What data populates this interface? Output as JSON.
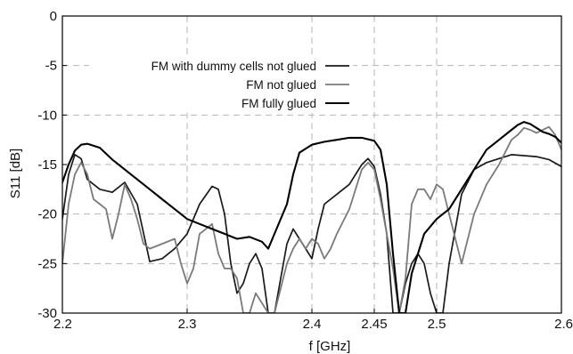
{
  "chart_data": {
    "type": "line",
    "title": "",
    "xlabel": "f [GHz]",
    "ylabel": "S11 [dB]",
    "xlim": [
      2.2,
      2.6
    ],
    "ylim": [
      -30,
      0
    ],
    "grid": true,
    "grid_style": "dashed",
    "legend_position": "top-right",
    "x_ticks": [
      {
        "value": 2.2,
        "label": "2.2"
      },
      {
        "value": 2.3,
        "label": "2.3"
      },
      {
        "value": 2.4,
        "label": "2.4"
      },
      {
        "value": 2.45,
        "label": "2.45"
      },
      {
        "value": 2.5,
        "label": "2.5"
      },
      {
        "value": 2.6,
        "label": "2.6"
      }
    ],
    "y_ticks": [
      {
        "value": 0,
        "label": "0"
      },
      {
        "value": -5,
        "label": "-5"
      },
      {
        "value": -10,
        "label": "-10"
      },
      {
        "value": -15,
        "label": "-15"
      },
      {
        "value": -20,
        "label": "-20"
      },
      {
        "value": -25,
        "label": "-25"
      },
      {
        "value": -30,
        "label": "-30"
      }
    ],
    "series": [
      {
        "name": "FM with dummy cells not glued",
        "color": "#1a1a1a",
        "points": [
          [
            2.2,
            -20.5
          ],
          [
            2.205,
            -16.0
          ],
          [
            2.21,
            -14.0
          ],
          [
            2.215,
            -14.4
          ],
          [
            2.22,
            -16.5
          ],
          [
            2.23,
            -17.5
          ],
          [
            2.24,
            -17.8
          ],
          [
            2.25,
            -16.8
          ],
          [
            2.26,
            -19.0
          ],
          [
            2.27,
            -24.8
          ],
          [
            2.28,
            -24.5
          ],
          [
            2.29,
            -23.5
          ],
          [
            2.3,
            -22.0
          ],
          [
            2.31,
            -19.0
          ],
          [
            2.32,
            -17.2
          ],
          [
            2.325,
            -17.5
          ],
          [
            2.33,
            -20.0
          ],
          [
            2.335,
            -25.0
          ],
          [
            2.34,
            -28.0
          ],
          [
            2.345,
            -27.0
          ],
          [
            2.35,
            -25.0
          ],
          [
            2.355,
            -24.0
          ],
          [
            2.36,
            -25.5
          ],
          [
            2.365,
            -30.0
          ],
          [
            2.37,
            -30.0
          ],
          [
            2.375,
            -26.5
          ],
          [
            2.38,
            -23.0
          ],
          [
            2.385,
            -21.5
          ],
          [
            2.39,
            -22.5
          ],
          [
            2.4,
            -24.5
          ],
          [
            2.405,
            -21.5
          ],
          [
            2.41,
            -19.0
          ],
          [
            2.42,
            -18.0
          ],
          [
            2.43,
            -17.0
          ],
          [
            2.44,
            -15.0
          ],
          [
            2.445,
            -14.4
          ],
          [
            2.45,
            -15.2
          ],
          [
            2.455,
            -18.0
          ],
          [
            2.46,
            -22.0
          ],
          [
            2.465,
            -30.0
          ],
          [
            2.47,
            -30.0
          ],
          [
            2.475,
            -27.0
          ],
          [
            2.48,
            -25.0
          ],
          [
            2.485,
            -24.0
          ],
          [
            2.49,
            -25.0
          ],
          [
            2.495,
            -28.0
          ],
          [
            2.5,
            -30.0
          ],
          [
            2.505,
            -30.0
          ],
          [
            2.51,
            -25.0
          ],
          [
            2.52,
            -18.0
          ],
          [
            2.53,
            -15.5
          ],
          [
            2.54,
            -14.8
          ],
          [
            2.55,
            -14.4
          ],
          [
            2.56,
            -14.0
          ],
          [
            2.57,
            -14.1
          ],
          [
            2.58,
            -14.2
          ],
          [
            2.59,
            -14.5
          ],
          [
            2.6,
            -15.2
          ]
        ]
      },
      {
        "name": "FM not glued",
        "color": "#7a7a7a",
        "points": [
          [
            2.2,
            -25.0
          ],
          [
            2.205,
            -19.0
          ],
          [
            2.21,
            -16.0
          ],
          [
            2.215,
            -14.8
          ],
          [
            2.22,
            -16.0
          ],
          [
            2.225,
            -18.5
          ],
          [
            2.23,
            -19.0
          ],
          [
            2.235,
            -19.5
          ],
          [
            2.24,
            -22.5
          ],
          [
            2.245,
            -20.0
          ],
          [
            2.25,
            -17.0
          ],
          [
            2.255,
            -18.5
          ],
          [
            2.26,
            -20.5
          ],
          [
            2.265,
            -23.0
          ],
          [
            2.27,
            -23.5
          ],
          [
            2.28,
            -23.0
          ],
          [
            2.29,
            -22.5
          ],
          [
            2.295,
            -25.0
          ],
          [
            2.3,
            -27.0
          ],
          [
            2.305,
            -25.5
          ],
          [
            2.31,
            -22.0
          ],
          [
            2.315,
            -21.5
          ],
          [
            2.32,
            -21.0
          ],
          [
            2.325,
            -24.0
          ],
          [
            2.33,
            -25.5
          ],
          [
            2.335,
            -25.5
          ],
          [
            2.34,
            -26.5
          ],
          [
            2.345,
            -30.0
          ],
          [
            2.35,
            -30.0
          ],
          [
            2.355,
            -28.0
          ],
          [
            2.36,
            -29.0
          ],
          [
            2.365,
            -30.0
          ],
          [
            2.37,
            -30.0
          ],
          [
            2.38,
            -25.0
          ],
          [
            2.385,
            -23.5
          ],
          [
            2.39,
            -22.5
          ],
          [
            2.395,
            -23.5
          ],
          [
            2.4,
            -22.5
          ],
          [
            2.405,
            -23.0
          ],
          [
            2.41,
            -24.5
          ],
          [
            2.415,
            -23.5
          ],
          [
            2.42,
            -22.0
          ],
          [
            2.43,
            -19.5
          ],
          [
            2.44,
            -15.5
          ],
          [
            2.445,
            -14.8
          ],
          [
            2.45,
            -15.5
          ],
          [
            2.455,
            -18.5
          ],
          [
            2.46,
            -22.0
          ],
          [
            2.465,
            -25.5
          ],
          [
            2.47,
            -30.0
          ],
          [
            2.475,
            -26.5
          ],
          [
            2.48,
            -19.0
          ],
          [
            2.485,
            -17.5
          ],
          [
            2.49,
            -17.5
          ],
          [
            2.495,
            -18.5
          ],
          [
            2.5,
            -17.0
          ],
          [
            2.505,
            -17.5
          ],
          [
            2.51,
            -20.0
          ],
          [
            2.52,
            -25.0
          ],
          [
            2.53,
            -20.0
          ],
          [
            2.54,
            -17.0
          ],
          [
            2.55,
            -15.0
          ],
          [
            2.56,
            -12.5
          ],
          [
            2.565,
            -12.0
          ],
          [
            2.57,
            -11.3
          ],
          [
            2.575,
            -11.5
          ],
          [
            2.58,
            -11.8
          ],
          [
            2.585,
            -11.5
          ],
          [
            2.59,
            -11.2
          ],
          [
            2.595,
            -12.0
          ],
          [
            2.6,
            -13.5
          ]
        ]
      },
      {
        "name": "FM fully glued",
        "color": "#000000",
        "points": [
          [
            2.2,
            -16.8
          ],
          [
            2.205,
            -15.0
          ],
          [
            2.21,
            -13.6
          ],
          [
            2.215,
            -13.0
          ],
          [
            2.22,
            -12.9
          ],
          [
            2.23,
            -13.3
          ],
          [
            2.24,
            -14.5
          ],
          [
            2.25,
            -15.5
          ],
          [
            2.26,
            -16.5
          ],
          [
            2.27,
            -17.5
          ],
          [
            2.28,
            -18.5
          ],
          [
            2.29,
            -19.5
          ],
          [
            2.3,
            -20.5
          ],
          [
            2.31,
            -21.0
          ],
          [
            2.32,
            -21.5
          ],
          [
            2.33,
            -22.0
          ],
          [
            2.34,
            -22.5
          ],
          [
            2.35,
            -22.3
          ],
          [
            2.36,
            -22.8
          ],
          [
            2.365,
            -23.5
          ],
          [
            2.37,
            -22.0
          ],
          [
            2.38,
            -19.0
          ],
          [
            2.385,
            -16.0
          ],
          [
            2.39,
            -13.8
          ],
          [
            2.4,
            -13.0
          ],
          [
            2.41,
            -12.7
          ],
          [
            2.42,
            -12.5
          ],
          [
            2.43,
            -12.3
          ],
          [
            2.44,
            -12.3
          ],
          [
            2.45,
            -12.6
          ],
          [
            2.455,
            -13.5
          ],
          [
            2.46,
            -17.0
          ],
          [
            2.465,
            -24.0
          ],
          [
            2.47,
            -30.0
          ],
          [
            2.475,
            -30.0
          ],
          [
            2.48,
            -26.0
          ],
          [
            2.49,
            -22.0
          ],
          [
            2.5,
            -20.5
          ],
          [
            2.51,
            -19.5
          ],
          [
            2.52,
            -17.5
          ],
          [
            2.53,
            -15.5
          ],
          [
            2.54,
            -13.5
          ],
          [
            2.55,
            -12.5
          ],
          [
            2.56,
            -11.5
          ],
          [
            2.565,
            -11.0
          ],
          [
            2.57,
            -10.7
          ],
          [
            2.575,
            -10.9
          ],
          [
            2.58,
            -11.3
          ],
          [
            2.585,
            -11.7
          ],
          [
            2.59,
            -11.9
          ],
          [
            2.595,
            -12.2
          ],
          [
            2.6,
            -12.8
          ]
        ]
      }
    ]
  }
}
